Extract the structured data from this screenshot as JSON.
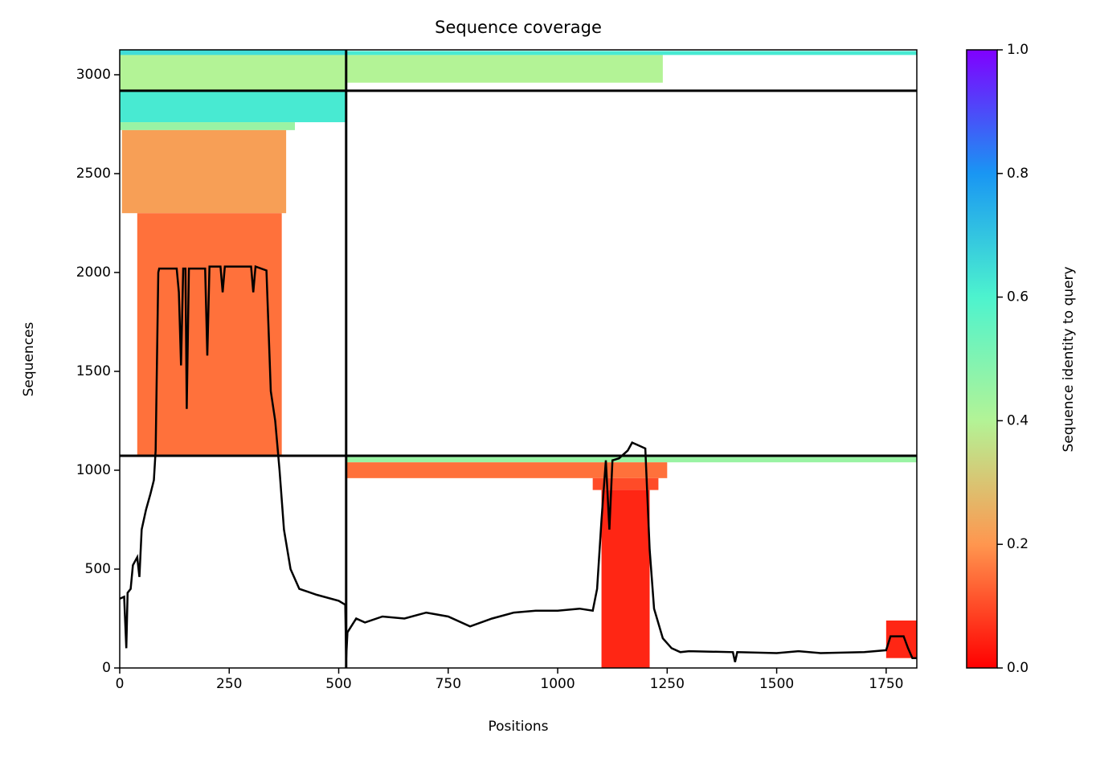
{
  "chart_data": {
    "type": "coverage",
    "title": "Sequence coverage",
    "xlabel": "Positions",
    "ylabel": "Sequences",
    "colorbar_label": "Sequence identity to query",
    "xlim": [
      0,
      1820
    ],
    "xticks": [
      0,
      250,
      500,
      750,
      1000,
      1250,
      1500,
      1750
    ],
    "ylim": [
      0,
      3126
    ],
    "yticks": [
      0,
      500,
      1000,
      1500,
      2000,
      2500,
      3000
    ],
    "clim": [
      0,
      1
    ],
    "cticks": [
      {
        "value": 0,
        "label": "0.0"
      },
      0.2,
      0.4,
      0.6,
      0.8,
      {
        "value": 1,
        "label": "1.0"
      }
    ],
    "colormap": [
      "#ff0000",
      "#ff964f",
      "#b3f396",
      "#4df3ce",
      "#1996f3",
      "#8000ff"
    ],
    "dividers": {
      "x": [
        517
      ],
      "y": [
        1073,
        2919
      ]
    },
    "regions": [
      {
        "positions": [
          0,
          517
        ],
        "sequences": [
          2920,
          3126
        ],
        "identity": 0.4
      },
      {
        "positions": [
          0,
          517
        ],
        "sequences": [
          3100,
          3126
        ],
        "identity": 0.65
      },
      {
        "positions": [
          0,
          517
        ],
        "sequences": [
          2760,
          2920
        ],
        "identity": 0.62
      },
      {
        "positions": [
          0,
          400
        ],
        "sequences": [
          2720,
          2760
        ],
        "identity": 0.45
      },
      {
        "positions": [
          5,
          380
        ],
        "sequences": [
          2300,
          2720
        ],
        "identity": 0.22
      },
      {
        "positions": [
          40,
          370
        ],
        "sequences": [
          1075,
          2300
        ],
        "identity": 0.15
      },
      {
        "positions": [
          517,
          1240
        ],
        "sequences": [
          2960,
          3100
        ],
        "identity": 0.4
      },
      {
        "positions": [
          517,
          1820
        ],
        "sequences": [
          3100,
          3120
        ],
        "identity": 0.62
      },
      {
        "positions": [
          517,
          1820
        ],
        "sequences": [
          1040,
          1073
        ],
        "identity": 0.45
      },
      {
        "positions": [
          517,
          1250
        ],
        "sequences": [
          960,
          1040
        ],
        "identity": 0.15
      },
      {
        "positions": [
          1080,
          1230
        ],
        "sequences": [
          900,
          960
        ],
        "identity": 0.1
      },
      {
        "positions": [
          1100,
          1210
        ],
        "sequences": [
          0,
          900
        ],
        "identity": 0.05
      },
      {
        "positions": [
          1750,
          1820
        ],
        "sequences": [
          50,
          240
        ],
        "identity": 0.05
      }
    ],
    "line": {
      "color": "#000000",
      "x": [
        0,
        10,
        15,
        18,
        25,
        30,
        40,
        45,
        50,
        60,
        70,
        78,
        82,
        88,
        90,
        130,
        135,
        140,
        145,
        150,
        153,
        158,
        195,
        200,
        205,
        230,
        235,
        240,
        300,
        305,
        310,
        335,
        345,
        355,
        365,
        375,
        390,
        410,
        450,
        500,
        515,
        517,
        520,
        540,
        560,
        600,
        650,
        700,
        750,
        800,
        850,
        900,
        950,
        1000,
        1050,
        1080,
        1090,
        1100,
        1110,
        1118,
        1125,
        1140,
        1160,
        1170,
        1180,
        1200,
        1210,
        1220,
        1240,
        1260,
        1280,
        1300,
        1400,
        1405,
        1410,
        1500,
        1550,
        1600,
        1700,
        1750,
        1760,
        1790,
        1800,
        1810,
        1820
      ],
      "values": [
        350,
        360,
        100,
        380,
        400,
        520,
        560,
        460,
        700,
        800,
        880,
        950,
        1100,
        2000,
        2020,
        2020,
        1900,
        1530,
        2020,
        2020,
        1310,
        2020,
        2020,
        1580,
        2030,
        2030,
        1900,
        2030,
        2030,
        1900,
        2030,
        2010,
        1400,
        1250,
        1000,
        700,
        500,
        400,
        370,
        340,
        320,
        50,
        180,
        250,
        230,
        260,
        250,
        280,
        260,
        210,
        250,
        280,
        290,
        290,
        300,
        290,
        400,
        750,
        1050,
        700,
        1050,
        1060,
        1100,
        1140,
        1130,
        1110,
        600,
        300,
        150,
        100,
        80,
        85,
        80,
        30,
        80,
        75,
        85,
        75,
        80,
        90,
        160,
        160,
        100,
        50,
        50
      ]
    }
  }
}
